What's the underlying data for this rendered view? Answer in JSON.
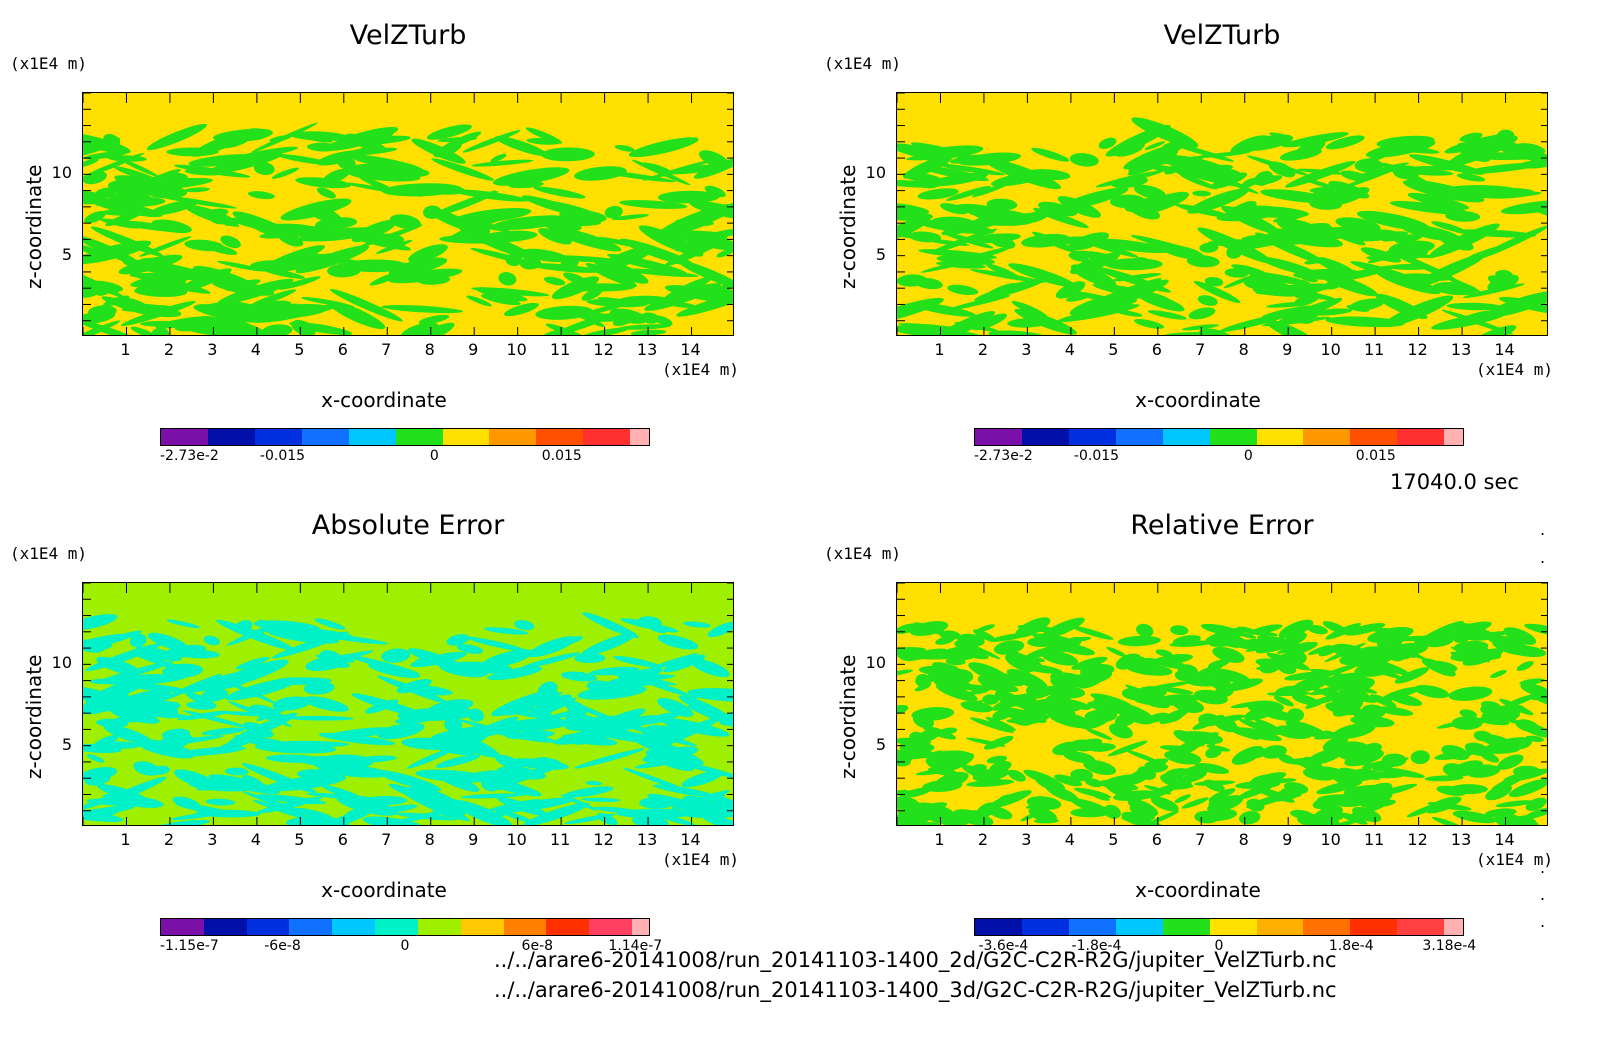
{
  "chart_data": [
    {
      "type": "heatmap",
      "title": "VelZTurb",
      "xlabel": "x-coordinate",
      "ylabel": "z-coordinate",
      "x_unit": "(x1E4 m)",
      "y_unit": "(x1E4 m)",
      "xlim": [
        0,
        15
      ],
      "ylim": [
        0,
        15
      ],
      "x_ticks": [
        "1",
        "2",
        "3",
        "4",
        "5",
        "6",
        "7",
        "8",
        "9",
        "10",
        "11",
        "12",
        "13",
        "14"
      ],
      "y_ticks": [
        "5",
        "10"
      ],
      "colorbar_labels": [
        "-2.73e-2",
        "-0.015",
        "0",
        "0.015"
      ],
      "colorbar_colors": [
        "#7a10a8",
        "#0010a8",
        "#0030e0",
        "#1070ff",
        "#00c8ff",
        "#22e01a",
        "#ffe000",
        "#ff9800",
        "#ff5000",
        "#ff3030",
        "#ffb0b0"
      ],
      "dominant_colors": {
        "background": "#ffe000",
        "pattern": "#22e01a"
      }
    },
    {
      "type": "heatmap",
      "title": "VelZTurb",
      "xlabel": "x-coordinate",
      "ylabel": "z-coordinate",
      "x_unit": "(x1E4 m)",
      "y_unit": "(x1E4 m)",
      "xlim": [
        0,
        15
      ],
      "ylim": [
        0,
        15
      ],
      "x_ticks": [
        "1",
        "2",
        "3",
        "4",
        "5",
        "6",
        "7",
        "8",
        "9",
        "10",
        "11",
        "12",
        "13",
        "14"
      ],
      "y_ticks": [
        "5",
        "10"
      ],
      "colorbar_labels": [
        "-2.73e-2",
        "-0.015",
        "0",
        "0.015"
      ],
      "colorbar_colors": [
        "#7a10a8",
        "#0010a8",
        "#0030e0",
        "#1070ff",
        "#00c8ff",
        "#22e01a",
        "#ffe000",
        "#ff9800",
        "#ff5000",
        "#ff3030",
        "#ffb0b0"
      ],
      "dominant_colors": {
        "background": "#ffe000",
        "pattern": "#22e01a"
      }
    },
    {
      "type": "heatmap",
      "title": "Absolute Error",
      "xlabel": "x-coordinate",
      "ylabel": "z-coordinate",
      "x_unit": "(x1E4 m)",
      "y_unit": "(x1E4 m)",
      "xlim": [
        0,
        15
      ],
      "ylim": [
        0,
        15
      ],
      "x_ticks": [
        "1",
        "2",
        "3",
        "4",
        "5",
        "6",
        "7",
        "8",
        "9",
        "10",
        "11",
        "12",
        "13",
        "14"
      ],
      "y_ticks": [
        "5",
        "10"
      ],
      "colorbar_labels": [
        "-1.15e-7",
        "-6e-8",
        "0",
        "6e-8",
        "1.14e-7"
      ],
      "colorbar_colors": [
        "#7a10a8",
        "#0010a8",
        "#0030e0",
        "#1070ff",
        "#00c8ff",
        "#00f0c8",
        "#9ef000",
        "#ffc800",
        "#ff8000",
        "#ff3000",
        "#ff4060",
        "#ffb0b0"
      ],
      "dominant_colors": {
        "background": "#9ef000",
        "pattern": "#00f0c8"
      }
    },
    {
      "type": "heatmap",
      "title": "Relative Error",
      "xlabel": "x-coordinate",
      "ylabel": "z-coordinate",
      "x_unit": "(x1E4 m)",
      "y_unit": "(x1E4 m)",
      "xlim": [
        0,
        15
      ],
      "ylim": [
        0,
        15
      ],
      "x_ticks": [
        "1",
        "2",
        "3",
        "4",
        "5",
        "6",
        "7",
        "8",
        "9",
        "10",
        "11",
        "12",
        "13",
        "14"
      ],
      "y_ticks": [
        "5",
        "10"
      ],
      "colorbar_labels": [
        "-3.6e-4",
        "-1.8e-4",
        "0",
        "1.8e-4",
        "3.18e-4"
      ],
      "colorbar_colors": [
        "#0010a8",
        "#0030e0",
        "#1070ff",
        "#00c8ff",
        "#22e01a",
        "#ffe000",
        "#ffb000",
        "#ff7000",
        "#ff3000",
        "#ff4040",
        "#ffb0b0"
      ],
      "dominant_colors": {
        "background": "#ffe000",
        "pattern": "#22e01a"
      }
    }
  ],
  "timestamp": "17040.0 sec",
  "file_paths": [
    "../../arare6-20141008/run_20141103-1400_2d/G2C-C2R-R2G/jupiter_VelZTurb.nc",
    "../../arare6-20141008/run_20141103-1400_3d/G2C-C2R-R2G/jupiter_VelZTurb.nc"
  ]
}
